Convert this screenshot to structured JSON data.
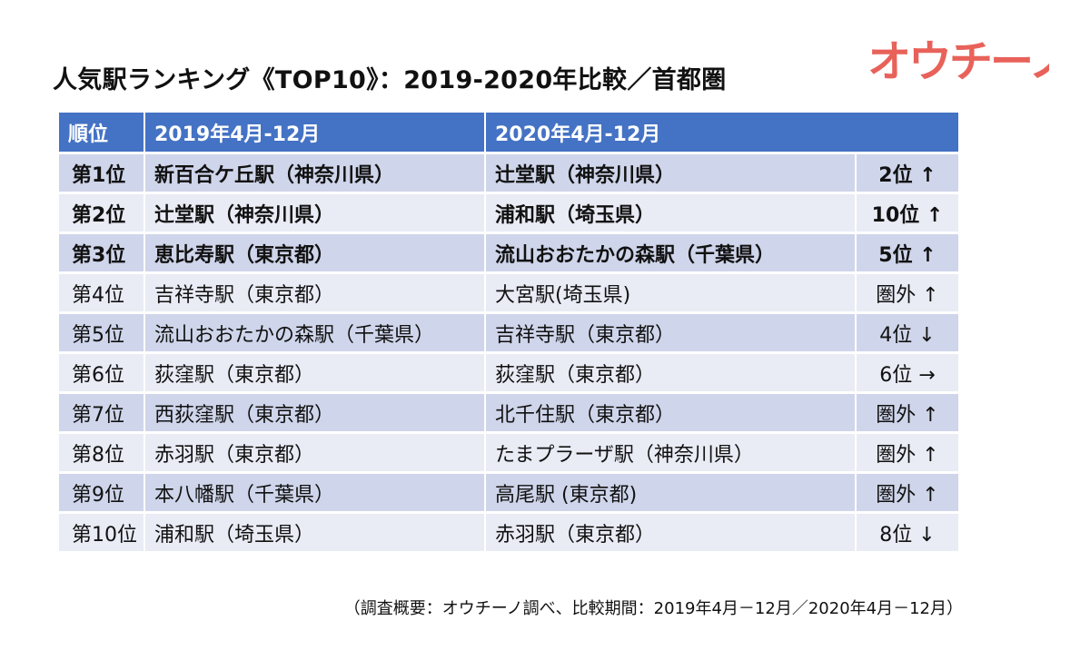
{
  "title": "人気駅ランキング《TOP10》：2019-2020年比較／首都圏",
  "logo": {
    "text": "オウチーノ",
    "color": "#e8625a"
  },
  "table": {
    "headers": [
      "順位",
      "2019年4月-12月",
      "2020年4月-12月",
      ""
    ],
    "rows": [
      {
        "rank": "第1位",
        "y2019": "新百合ケ丘駅（神奈川県）",
        "y2020": "辻堂駅（神奈川県）",
        "change": "2位 ↑",
        "bold": true
      },
      {
        "rank": "第2位",
        "y2019": "辻堂駅（神奈川県）",
        "y2020": "浦和駅（埼玉県）",
        "change": "10位 ↑",
        "bold": true
      },
      {
        "rank": "第3位",
        "y2019": "恵比寿駅（東京都）",
        "y2020": "流山おおたかの森駅（千葉県）",
        "change": "5位 ↑",
        "bold": true
      },
      {
        "rank": "第4位",
        "y2019": "吉祥寺駅（東京都）",
        "y2020": "大宮駅(埼玉県)",
        "change": "圏外 ↑",
        "bold": false
      },
      {
        "rank": "第5位",
        "y2019": "流山おおたかの森駅（千葉県）",
        "y2020": "吉祥寺駅（東京都）",
        "change": "4位 ↓",
        "bold": false
      },
      {
        "rank": "第6位",
        "y2019": "荻窪駅（東京都）",
        "y2020": "荻窪駅（東京都）",
        "change": "6位 →",
        "bold": false
      },
      {
        "rank": "第7位",
        "y2019": "西荻窪駅（東京都）",
        "y2020": "北千住駅（東京都）",
        "change": "圏外 ↑",
        "bold": false
      },
      {
        "rank": "第8位",
        "y2019": "赤羽駅（東京都）",
        "y2020": "たまプラーザ駅（神奈川県）",
        "change": "圏外 ↑",
        "bold": false
      },
      {
        "rank": "第9位",
        "y2019": "本八幡駅（千葉県）",
        "y2020": "高尾駅 (東京都)",
        "change": "圏外 ↑",
        "bold": false
      },
      {
        "rank": "第10位",
        "y2019": "浦和駅（埼玉県）",
        "y2020": "赤羽駅（東京都）",
        "change": "8位 ↓",
        "bold": false
      }
    ]
  },
  "footnote": "（調査概要：オウチーノ調べ、比較期間：2019年4月－12月／2020年4月－12月）",
  "colors": {
    "header_bg": "#4472c4",
    "row_dark": "#cfd5ea",
    "row_light": "#e9ebf5"
  }
}
